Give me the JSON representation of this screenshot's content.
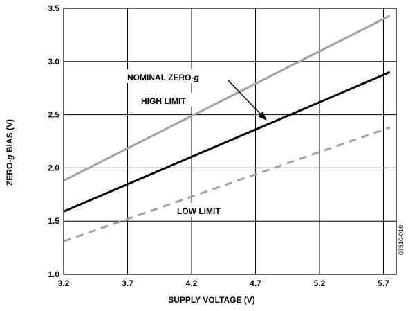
{
  "chart_data": {
    "type": "line",
    "xlabel": "SUPPLY VOLTAGE (V)",
    "ylabel_prefix": "ZERO-",
    "ylabel_italic": "g",
    "ylabel_suffix": " BIAS (V)",
    "xlim": [
      3.2,
      5.8
    ],
    "ylim": [
      1.0,
      3.5
    ],
    "x_ticks": [
      "3.2",
      "3.7",
      "4.2",
      "4.7",
      "5.2",
      "5.7"
    ],
    "x_tick_values": [
      3.2,
      3.7,
      4.2,
      4.7,
      5.2,
      5.7
    ],
    "y_ticks": [
      "1.0",
      "1.5",
      "2.0",
      "2.5",
      "3.0",
      "3.5"
    ],
    "y_tick_values": [
      1.0,
      1.5,
      2.0,
      2.5,
      3.0,
      3.5
    ],
    "grid": true,
    "series": [
      {
        "x": [
          3.2,
          5.75
        ],
        "values": [
          1.88,
          3.43
        ],
        "color": "#a0a0a0",
        "dash": "solid"
      },
      {
        "x": [
          3.2,
          5.75
        ],
        "values": [
          1.59,
          2.9
        ],
        "color": "#000000",
        "dash": "solid"
      },
      {
        "x": [
          3.2,
          5.75
        ],
        "values": [
          1.31,
          2.38
        ],
        "color": "#a0a0a0",
        "dash": "dashed"
      }
    ],
    "annotations": {
      "nominal_prefix": "NOMINAL ZERO-",
      "nominal_italic": "g",
      "high": "HIGH LIMIT",
      "low": "LOW LIMIT"
    },
    "figure_id": "07510-016"
  }
}
